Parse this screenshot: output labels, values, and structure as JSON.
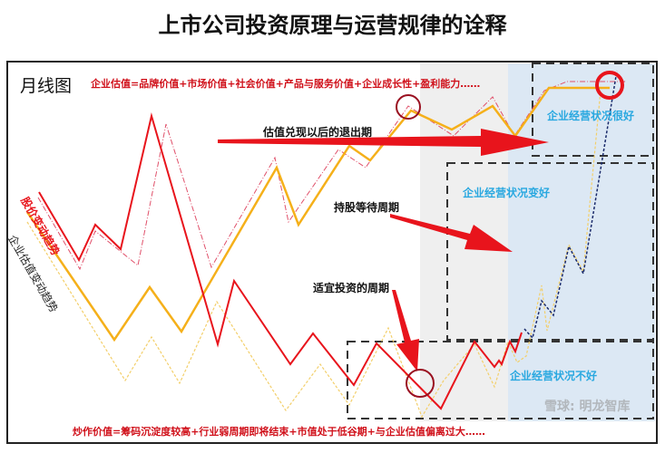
{
  "title": "上市公司投资原理与运营规律的诠释",
  "chart_label": "月线图",
  "top_formula": "企业估值=品牌价值+市场价值+社会价值+产品与服务价值+企业成长性+盈利能力……",
  "bottom_formula": "炒作价值=筹码沉淀度较高+行业弱周期即将结束+市值处于低谷期+与企业估值偏离过大……",
  "annotations": {
    "exit": "估值兑现以后的退出期",
    "hold": "持股等待周期",
    "invest": "适宜投资的周期"
  },
  "states": {
    "very_good": "企业经营状况很好",
    "improving": "企业经营状况变好",
    "bad": "企业经营状况不好"
  },
  "series_labels": {
    "price": "股价变动趋势",
    "valuation": "企业估值变动趋势"
  },
  "watermark": "雪球: 明龙智库",
  "colors": {
    "price": "#e8141c",
    "valuation": "#f5b01a",
    "state_text": "#29a8e0",
    "gray_zone": "#efefef",
    "blue_zone": "#dce8f4"
  }
}
